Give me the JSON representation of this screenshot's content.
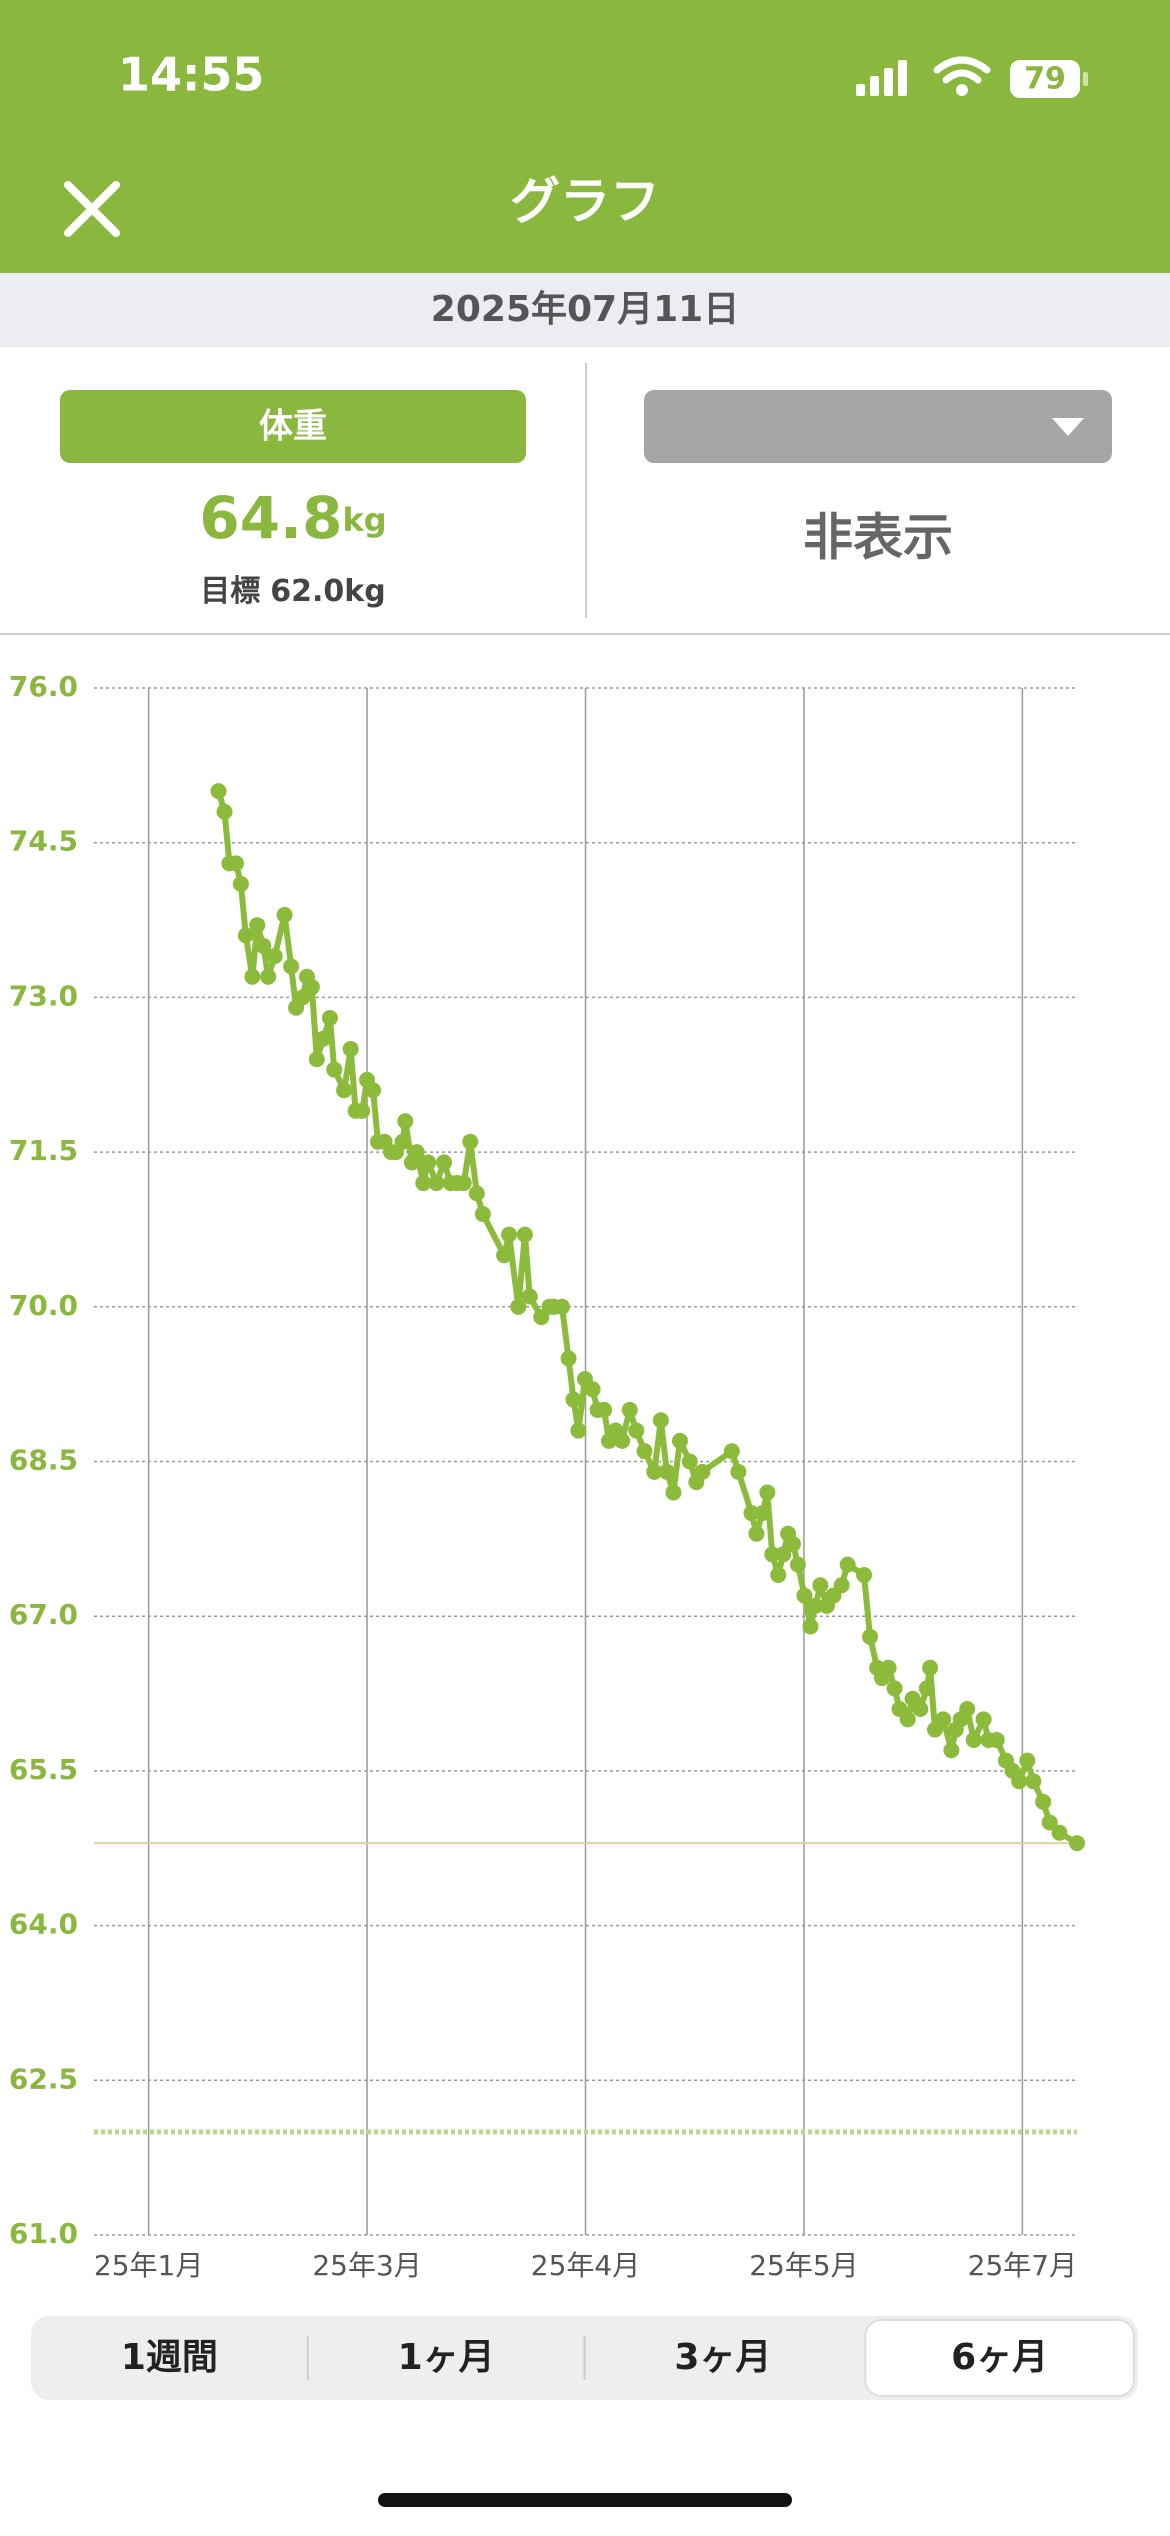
{
  "status_bar": {
    "time": "14:55",
    "battery": 79
  },
  "header": {
    "title": "グラフ"
  },
  "date": "2025年07月11日",
  "panel_left": {
    "button": "体重",
    "value": 64.8,
    "unit": "kg",
    "goal_label": "目標",
    "goal": {
      "value": 62,
      "label": "62.0"
    }
  },
  "panel_right": {
    "value": "非表示"
  },
  "chart_data": {
    "type": "line",
    "color": "#8cbb3c",
    "x": [
      22.8,
      23.9,
      24.8,
      26,
      26.9,
      27.8,
      29,
      29.9,
      31,
      31.9,
      33.1,
      34.9,
      36.1,
      37,
      38.2,
      39,
      39.9,
      40.8,
      42,
      43.2,
      44,
      45.8,
      47,
      47.9,
      49.1,
      50,
      51.1,
      52,
      53.2,
      54.4,
      55.3,
      56.5,
      57,
      58.2,
      59.1,
      60.3,
      61.2,
      62.7,
      64.1,
      65.3,
      66.5,
      67.7,
      68.9,
      70.1,
      71.2,
      75.1,
      76,
      77.7,
      78.9,
      79.8,
      81.9,
      83.4,
      84.2,
      85.7,
      86.9,
      87.8,
      88.7,
      89.9,
      91.3,
      92.2,
      93.4,
      94.3,
      95.5,
      96.7,
      98.1,
      99.3,
      100.8,
      102.6,
      103.8,
      104.9,
      106.1,
      107.3,
      109.1,
      110.3,
      111.4,
      116.8,
      118,
      120.4,
      121.3,
      122.4,
      123.3,
      124.2,
      125.3,
      126.2,
      127.1,
      128,
      128.9,
      130.1,
      131.2,
      132.1,
      133,
      134.2,
      135.4,
      136.9,
      138,
      141,
      142.1,
      143.4,
      144.3,
      145.5,
      146.6,
      147.5,
      149,
      149.9,
      151.3,
      152.5,
      153.1,
      154,
      155.5,
      157,
      157.8,
      158.7,
      159.9,
      161.1,
      162.9,
      163.8,
      165.3,
      167,
      168.2,
      169.4,
      170.9,
      172,
      173.8,
      175,
      176.8,
      180
    ],
    "values": [
      75.0,
      74.8,
      74.3,
      74.3,
      74.1,
      73.6,
      73.2,
      73.7,
      73.5,
      73.2,
      73.4,
      73.8,
      73.3,
      72.9,
      73.0,
      73.2,
      73.1,
      72.4,
      72.6,
      72.8,
      72.3,
      72.1,
      72.5,
      71.9,
      71.9,
      72.2,
      72.1,
      71.6,
      71.6,
      71.5,
      71.5,
      71.6,
      71.8,
      71.4,
      71.5,
      71.2,
      71.4,
      71.2,
      71.4,
      71.2,
      71.2,
      71.2,
      71.6,
      71.1,
      70.9,
      70.5,
      70.7,
      70.0,
      70.7,
      70.1,
      69.9,
      70.0,
      70.0,
      70.0,
      69.5,
      69.1,
      68.8,
      69.3,
      69.2,
      69.0,
      69.0,
      68.7,
      68.8,
      68.7,
      69.0,
      68.8,
      68.6,
      68.4,
      68.9,
      68.4,
      68.2,
      68.7,
      68.5,
      68.3,
      68.4,
      68.6,
      68.4,
      68.0,
      67.8,
      68.0,
      68.2,
      67.6,
      67.4,
      67.6,
      67.8,
      67.7,
      67.5,
      67.2,
      66.9,
      67.1,
      67.3,
      67.1,
      67.2,
      67.3,
      67.5,
      67.4,
      66.8,
      66.5,
      66.4,
      66.5,
      66.3,
      66.1,
      66.0,
      66.2,
      66.1,
      66.3,
      66.5,
      65.9,
      66.0,
      65.7,
      65.9,
      66.0,
      66.1,
      65.8,
      66.0,
      65.8,
      65.8,
      65.6,
      65.5,
      65.4,
      65.6,
      65.4,
      65.2,
      65.0,
      64.9,
      64.8
    ],
    "xlim": [
      0,
      180
    ],
    "xticks": [
      {
        "value": 10,
        "label": "25年1月"
      },
      {
        "value": 50,
        "label": "25年3月"
      },
      {
        "value": 90,
        "label": "25年4月"
      },
      {
        "value": 130,
        "label": "25年5月"
      },
      {
        "value": 170,
        "label": "25年7月"
      }
    ],
    "ylim": [
      61,
      76
    ],
    "yticks": [
      {
        "value": 61,
        "label": "61.0"
      },
      62.5,
      {
        "value": 64,
        "label": "64.0"
      },
      65.5,
      {
        "value": 67,
        "label": "67.0"
      },
      68.5,
      {
        "value": 70,
        "label": "70.0"
      },
      71.5,
      {
        "value": 73,
        "label": "73.0"
      },
      74.5,
      {
        "value": 76,
        "label": "76.0"
      }
    ],
    "grid": true
  },
  "tabs": [
    "1週間",
    "1ヶ月",
    "3ヶ月",
    "6ヶ月"
  ],
  "selected_tab": 3
}
